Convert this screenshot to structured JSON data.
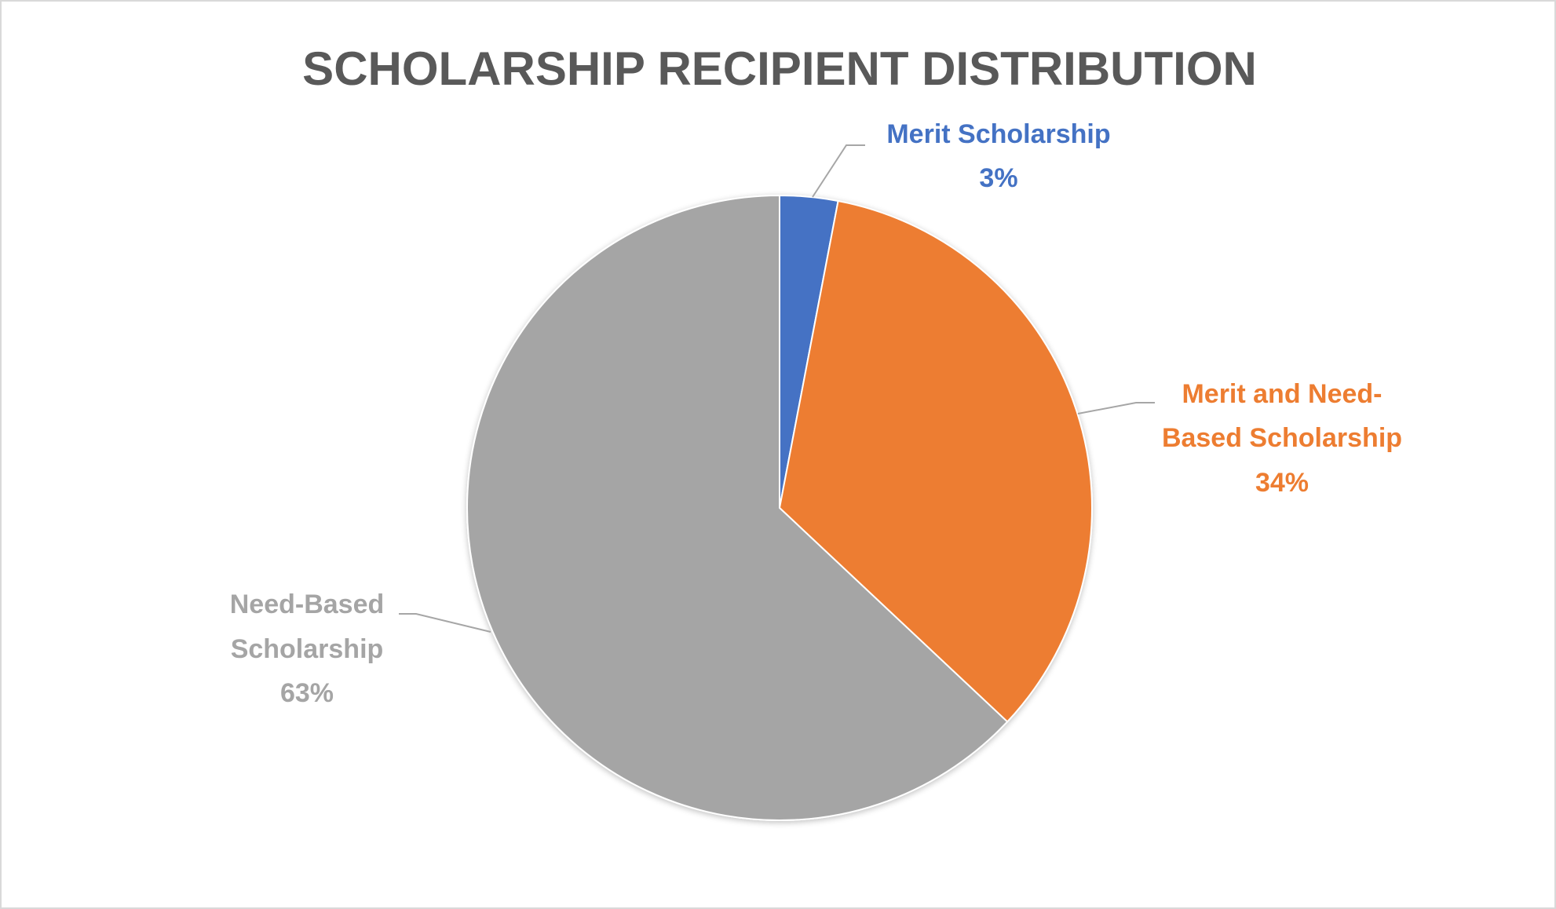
{
  "chart_data": {
    "type": "pie",
    "title": "SCHOLARSHIP RECIPIENT DISTRIBUTION",
    "slices": [
      {
        "label_lines": [
          "Merit Scholarship"
        ],
        "value": 3,
        "percent_label": "3%",
        "color": "#4472C4"
      },
      {
        "label_lines": [
          "Merit and Need-",
          "Based Scholarship"
        ],
        "value": 34,
        "percent_label": "34%",
        "color": "#ED7D31"
      },
      {
        "label_lines": [
          "Need-Based",
          "Scholarship"
        ],
        "value": 63,
        "percent_label": "63%",
        "color": "#A5A5A5"
      }
    ],
    "start_angle": "12 o'clock",
    "direction": "clockwise",
    "legend": "none",
    "data_labels": "outside with leader lines"
  }
}
